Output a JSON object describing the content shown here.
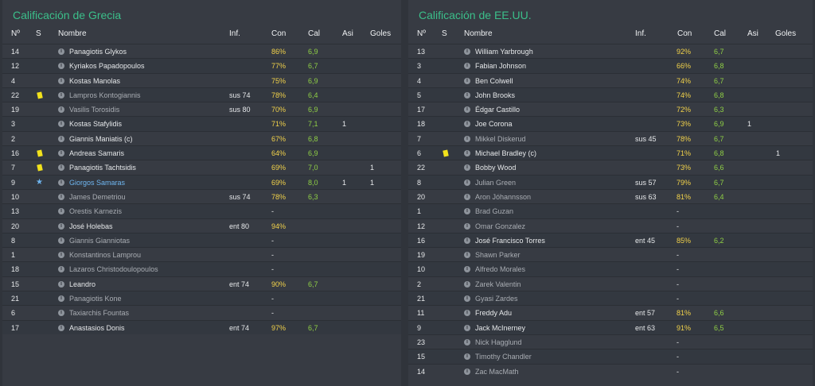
{
  "columns": {
    "no": "Nº",
    "s": "S",
    "name": "Nombre",
    "inf": "Inf.",
    "con": "Con",
    "cal": "Cal",
    "asi": "Asi",
    "goles": "Goles"
  },
  "colors": {
    "title": "#3bbf8a",
    "con": "#f2d24a",
    "cal": "#8fcf45",
    "card": "#f2e21c",
    "star": "#6fb6f0"
  },
  "home": {
    "title": "Calificación de Grecia",
    "rows": [
      {
        "no": "14",
        "name": "Panagiotis Glykos",
        "inf": "",
        "con": "86%",
        "cal": "6,9",
        "asi": "",
        "goles": "",
        "mark": "",
        "dim": false
      },
      {
        "no": "12",
        "name": "Kyriakos Papadopoulos",
        "inf": "",
        "con": "77%",
        "cal": "6,7",
        "asi": "",
        "goles": "",
        "mark": "",
        "dim": false
      },
      {
        "no": "4",
        "name": "Kostas Manolas",
        "inf": "",
        "con": "75%",
        "cal": "6,9",
        "asi": "",
        "goles": "",
        "mark": "",
        "dim": false
      },
      {
        "no": "22",
        "name": "Lampros Kontogiannis",
        "inf": "sus 74",
        "con": "78%",
        "cal": "6,4",
        "asi": "",
        "goles": "",
        "mark": "yellow-card",
        "dim": true
      },
      {
        "no": "19",
        "name": "Vasilis Torosidis",
        "inf": "sus 80",
        "con": "70%",
        "cal": "6,9",
        "asi": "",
        "goles": "",
        "mark": "",
        "dim": true
      },
      {
        "no": "3",
        "name": "Kostas Stafylidis",
        "inf": "",
        "con": "71%",
        "cal": "7,1",
        "asi": "1",
        "goles": "",
        "mark": "",
        "dim": false
      },
      {
        "no": "2",
        "name": "Giannis Maniatis (c)",
        "inf": "",
        "con": "67%",
        "cal": "6,8",
        "asi": "",
        "goles": "",
        "mark": "",
        "dim": false
      },
      {
        "no": "16",
        "name": "Andreas Samaris",
        "inf": "",
        "con": "64%",
        "cal": "6,9",
        "asi": "",
        "goles": "",
        "mark": "yellow-card",
        "dim": false
      },
      {
        "no": "7",
        "name": "Panagiotis Tachtsidis",
        "inf": "",
        "con": "69%",
        "cal": "7,0",
        "asi": "",
        "goles": "1",
        "mark": "yellow-card",
        "dim": false
      },
      {
        "no": "9",
        "name": "Giorgos Samaras",
        "inf": "",
        "con": "69%",
        "cal": "8,0",
        "asi": "1",
        "goles": "1",
        "mark": "star",
        "dim": false
      },
      {
        "no": "10",
        "name": "James Demetriou",
        "inf": "sus 74",
        "con": "78%",
        "cal": "6,3",
        "asi": "",
        "goles": "",
        "mark": "",
        "dim": true
      },
      {
        "no": "13",
        "name": "Orestis Karnezis",
        "inf": "",
        "con": "-",
        "cal": "",
        "asi": "",
        "goles": "",
        "mark": "",
        "dim": true
      },
      {
        "no": "20",
        "name": "José Holebas",
        "inf": "ent 80",
        "con": "94%",
        "cal": "",
        "asi": "",
        "goles": "",
        "mark": "",
        "dim": false
      },
      {
        "no": "8",
        "name": "Giannis Gianniotas",
        "inf": "",
        "con": "-",
        "cal": "",
        "asi": "",
        "goles": "",
        "mark": "",
        "dim": true
      },
      {
        "no": "1",
        "name": "Konstantinos Lamprou",
        "inf": "",
        "con": "-",
        "cal": "",
        "asi": "",
        "goles": "",
        "mark": "",
        "dim": true
      },
      {
        "no": "18",
        "name": "Lazaros Christodoulopoulos",
        "inf": "",
        "con": "-",
        "cal": "",
        "asi": "",
        "goles": "",
        "mark": "",
        "dim": true
      },
      {
        "no": "15",
        "name": "Leandro",
        "inf": "ent 74",
        "con": "90%",
        "cal": "6,7",
        "asi": "",
        "goles": "",
        "mark": "",
        "dim": false
      },
      {
        "no": "21",
        "name": "Panagiotis Kone",
        "inf": "",
        "con": "-",
        "cal": "",
        "asi": "",
        "goles": "",
        "mark": "",
        "dim": true
      },
      {
        "no": "6",
        "name": "Taxiarchis Fountas",
        "inf": "",
        "con": "-",
        "cal": "",
        "asi": "",
        "goles": "",
        "mark": "",
        "dim": true
      },
      {
        "no": "17",
        "name": "Anastasios Donis",
        "inf": "ent 74",
        "con": "97%",
        "cal": "6,7",
        "asi": "",
        "goles": "",
        "mark": "",
        "dim": false
      }
    ]
  },
  "away": {
    "title": "Calificación de EE.UU.",
    "rows": [
      {
        "no": "13",
        "name": "William Yarbrough",
        "inf": "",
        "con": "92%",
        "cal": "6,7",
        "asi": "",
        "goles": "",
        "mark": "",
        "dim": false
      },
      {
        "no": "3",
        "name": "Fabian Johnson",
        "inf": "",
        "con": "66%",
        "cal": "6,8",
        "asi": "",
        "goles": "",
        "mark": "",
        "dim": false
      },
      {
        "no": "4",
        "name": "Ben Colwell",
        "inf": "",
        "con": "74%",
        "cal": "6,7",
        "asi": "",
        "goles": "",
        "mark": "",
        "dim": false
      },
      {
        "no": "5",
        "name": "John Brooks",
        "inf": "",
        "con": "74%",
        "cal": "6,8",
        "asi": "",
        "goles": "",
        "mark": "",
        "dim": false
      },
      {
        "no": "17",
        "name": "Édgar Castillo",
        "inf": "",
        "con": "72%",
        "cal": "6,3",
        "asi": "",
        "goles": "",
        "mark": "",
        "dim": false
      },
      {
        "no": "18",
        "name": "Joe Corona",
        "inf": "",
        "con": "73%",
        "cal": "6,9",
        "asi": "1",
        "goles": "",
        "mark": "",
        "dim": false
      },
      {
        "no": "7",
        "name": "Mikkel Diskerud",
        "inf": "sus 45",
        "con": "78%",
        "cal": "6,7",
        "asi": "",
        "goles": "",
        "mark": "",
        "dim": true
      },
      {
        "no": "6",
        "name": "Michael Bradley (c)",
        "inf": "",
        "con": "71%",
        "cal": "6,8",
        "asi": "",
        "goles": "1",
        "mark": "yellow-card",
        "dim": false
      },
      {
        "no": "22",
        "name": "Bobby Wood",
        "inf": "",
        "con": "73%",
        "cal": "6,6",
        "asi": "",
        "goles": "",
        "mark": "",
        "dim": false
      },
      {
        "no": "8",
        "name": "Julian Green",
        "inf": "sus 57",
        "con": "79%",
        "cal": "6,7",
        "asi": "",
        "goles": "",
        "mark": "",
        "dim": true
      },
      {
        "no": "20",
        "name": "Aron Jóhannsson",
        "inf": "sus 63",
        "con": "81%",
        "cal": "6,4",
        "asi": "",
        "goles": "",
        "mark": "",
        "dim": true
      },
      {
        "no": "1",
        "name": "Brad Guzan",
        "inf": "",
        "con": "-",
        "cal": "",
        "asi": "",
        "goles": "",
        "mark": "",
        "dim": true
      },
      {
        "no": "12",
        "name": "Omar Gonzalez",
        "inf": "",
        "con": "-",
        "cal": "",
        "asi": "",
        "goles": "",
        "mark": "",
        "dim": true
      },
      {
        "no": "16",
        "name": "José Francisco Torres",
        "inf": "ent 45",
        "con": "85%",
        "cal": "6,2",
        "asi": "",
        "goles": "",
        "mark": "",
        "dim": false
      },
      {
        "no": "19",
        "name": "Shawn Parker",
        "inf": "",
        "con": "-",
        "cal": "",
        "asi": "",
        "goles": "",
        "mark": "",
        "dim": true
      },
      {
        "no": "10",
        "name": "Alfredo Morales",
        "inf": "",
        "con": "-",
        "cal": "",
        "asi": "",
        "goles": "",
        "mark": "",
        "dim": true
      },
      {
        "no": "2",
        "name": "Zarek Valentin",
        "inf": "",
        "con": "-",
        "cal": "",
        "asi": "",
        "goles": "",
        "mark": "",
        "dim": true
      },
      {
        "no": "21",
        "name": "Gyasi Zardes",
        "inf": "",
        "con": "-",
        "cal": "",
        "asi": "",
        "goles": "",
        "mark": "",
        "dim": true
      },
      {
        "no": "11",
        "name": "Freddy Adu",
        "inf": "ent 57",
        "con": "81%",
        "cal": "6,6",
        "asi": "",
        "goles": "",
        "mark": "",
        "dim": false
      },
      {
        "no": "9",
        "name": "Jack McInerney",
        "inf": "ent 63",
        "con": "91%",
        "cal": "6,5",
        "asi": "",
        "goles": "",
        "mark": "",
        "dim": false
      },
      {
        "no": "23",
        "name": "Nick Hagglund",
        "inf": "",
        "con": "-",
        "cal": "",
        "asi": "",
        "goles": "",
        "mark": "",
        "dim": true
      },
      {
        "no": "15",
        "name": "Timothy Chandler",
        "inf": "",
        "con": "-",
        "cal": "",
        "asi": "",
        "goles": "",
        "mark": "",
        "dim": true
      },
      {
        "no": "14",
        "name": "Zac MacMath",
        "inf": "",
        "con": "-",
        "cal": "",
        "asi": "",
        "goles": "",
        "mark": "",
        "dim": true
      }
    ]
  }
}
